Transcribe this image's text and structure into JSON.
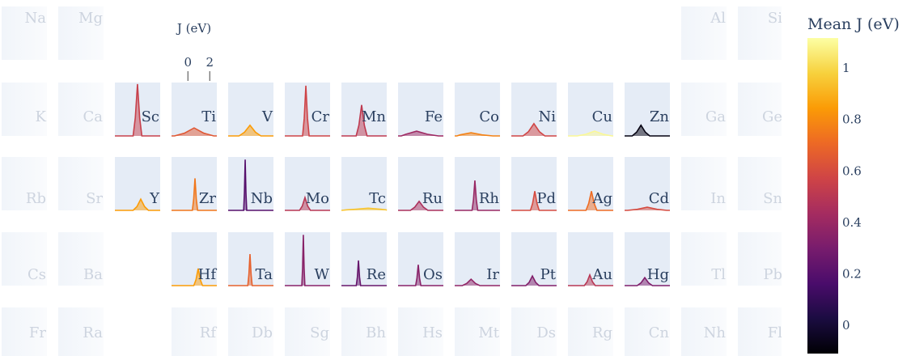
{
  "chart_data": {
    "type": "periodic-density",
    "xlabel": "J (eV)",
    "xlim": [
      -1.5,
      2.65
    ],
    "xticks": [
      0,
      2
    ],
    "ylim": [
      0,
      1
    ],
    "colorbar": {
      "title": "Mean J (eV)",
      "lim": [
        -0.107,
        1.12
      ],
      "ticks": [
        0,
        0.2,
        0.4,
        0.6,
        0.8,
        1
      ]
    },
    "colorscale": [
      "#000004",
      "#1b0c41",
      "#4a0c6b",
      "#781c6d",
      "#a52c60",
      "#cf4446",
      "#ed6925",
      "#fb9b06",
      "#f7d13d",
      "#fcffa4"
    ],
    "rows": [
      [
        {
          "symbol": "Na"
        },
        {
          "symbol": "Mg"
        },
        null,
        null,
        null,
        null,
        null,
        null,
        null,
        null,
        null,
        null,
        {
          "symbol": "Al"
        },
        {
          "symbol": "Si"
        }
      ],
      [
        {
          "symbol": "K"
        },
        {
          "symbol": "Ca"
        },
        {
          "symbol": "Sc",
          "mean_j": 0.55,
          "x": [
            -1.5,
            0.17,
            0.37,
            0.57,
            0.77,
            0.97,
            2.65
          ],
          "y": [
            0,
            0,
            0.34,
            0.97,
            0.34,
            0,
            0
          ]
        },
        {
          "symbol": "Ti",
          "mean_j": 0.65,
          "x": [
            -1.5,
            -1.23,
            -0.33,
            0.57,
            1.47,
            2.37,
            2.65
          ],
          "y": [
            0,
            0,
            0.05,
            0.15,
            0.05,
            0,
            0
          ]
        },
        {
          "symbol": "V",
          "mean_j": 0.85,
          "x": [
            -1.5,
            -0.5,
            0,
            0.5,
            1,
            1.5,
            2.65
          ],
          "y": [
            0,
            0,
            0.07,
            0.2,
            0.07,
            0,
            0
          ]
        },
        {
          "symbol": "Cr",
          "mean_j": 0.57,
          "x": [
            -1.5,
            0.13,
            0.28,
            0.43,
            0.58,
            0.73,
            2.65
          ],
          "y": [
            0,
            0,
            0.33,
            0.94,
            0.33,
            0,
            0
          ]
        },
        {
          "symbol": "Mn",
          "mean_j": 0.52,
          "x": [
            -1.5,
            -0.15,
            0.1,
            0.35,
            0.6,
            0.85,
            2.65
          ],
          "y": [
            0,
            0,
            0.2,
            0.58,
            0.2,
            0,
            0
          ]
        },
        {
          "symbol": "Fe",
          "mean_j": 0.42,
          "x": [
            -1.5,
            -1.2,
            -0.8,
            0.2,
            1.2,
            2.2,
            2.65
          ],
          "y": [
            0,
            0,
            0.03,
            0.09,
            0.03,
            0,
            0
          ]
        },
        {
          "symbol": "Co",
          "mean_j": 0.78,
          "x": [
            -1.5,
            -1.3,
            -1,
            0,
            1,
            2,
            2.65
          ],
          "y": [
            0,
            0,
            0.02,
            0.06,
            0.02,
            0,
            0
          ]
        },
        {
          "symbol": "Ni",
          "mean_j": 0.58,
          "x": [
            -1.5,
            -0.43,
            0.07,
            0.57,
            1.07,
            1.57,
            2.65
          ],
          "y": [
            0,
            0,
            0.08,
            0.23,
            0.08,
            0,
            0
          ]
        },
        {
          "symbol": "Cu",
          "mean_j": 1.1,
          "x": [
            -1.5,
            -0.66,
            0.14,
            0.94,
            1.74,
            2.54,
            2.65
          ],
          "y": [
            0,
            0,
            0.03,
            0.09,
            0.03,
            0,
            0
          ]
        },
        {
          "symbol": "Zn",
          "mean_j": -0.08,
          "x": [
            -1.5,
            -0.8,
            -0.4,
            0,
            0.4,
            0.8,
            2.65
          ],
          "y": [
            0,
            0,
            0.07,
            0.2,
            0.07,
            0,
            0
          ]
        },
        {
          "symbol": "Ga"
        },
        {
          "symbol": "Ge"
        }
      ],
      [
        {
          "symbol": "Rb"
        },
        {
          "symbol": "Sr"
        },
        {
          "symbol": "Y",
          "mean_j": 0.85,
          "x": [
            -1.5,
            0.17,
            0.52,
            0.87,
            1.22,
            1.57,
            2.65
          ],
          "y": [
            0,
            0,
            0.07,
            0.21,
            0.07,
            0,
            0
          ]
        },
        {
          "symbol": "Zr",
          "mean_j": 0.75,
          "x": [
            -1.5,
            0.41,
            0.53,
            0.65,
            0.77,
            0.89,
            2.65
          ],
          "y": [
            0,
            0,
            0.21,
            0.6,
            0.21,
            0,
            0
          ]
        },
        {
          "symbol": "Nb",
          "mean_j": 0.2,
          "x": [
            -1.5,
            -0.08,
            -0.01,
            0.06,
            0.13,
            0.2,
            2.65
          ],
          "y": [
            0,
            0,
            0.33,
            0.95,
            0.33,
            0,
            0
          ]
        },
        {
          "symbol": "Mo",
          "mean_j": 0.5,
          "x": [
            -1.5,
            -0.15,
            0.1,
            0.35,
            0.6,
            0.85,
            2.65
          ],
          "y": [
            0,
            0,
            0.08,
            0.24,
            0.08,
            0,
            0
          ]
        },
        {
          "symbol": "Tc",
          "mean_j": 0.95,
          "x": [
            -1.5,
            -1,
            -0.25,
            0.95,
            2.15,
            2.6,
            2.65
          ],
          "y": [
            0,
            0.01,
            0.02,
            0.04,
            0.02,
            0.01,
            0
          ]
        },
        {
          "symbol": "Ru",
          "mean_j": 0.46,
          "x": [
            -1.5,
            -0.37,
            0.03,
            0.43,
            0.83,
            1.23,
            2.65
          ],
          "y": [
            0,
            0,
            0.06,
            0.17,
            0.06,
            0,
            0
          ]
        },
        {
          "symbol": "Rh",
          "mean_j": 0.4,
          "x": [
            -1.5,
            0.09,
            0.22,
            0.35,
            0.48,
            0.61,
            2.65
          ],
          "y": [
            0,
            0,
            0.2,
            0.56,
            0.2,
            0,
            0
          ]
        },
        {
          "symbol": "Pd",
          "mean_j": 0.6,
          "x": [
            -1.5,
            0.25,
            0.45,
            0.65,
            0.85,
            1.05,
            2.65
          ],
          "y": [
            0,
            0,
            0.13,
            0.36,
            0.13,
            0,
            0
          ]
        },
        {
          "symbol": "Ag",
          "mean_j": 0.72,
          "x": [
            -1.5,
            0.15,
            0.4,
            0.65,
            0.9,
            1.15,
            2.65
          ],
          "y": [
            0,
            0,
            0.13,
            0.36,
            0.13,
            0,
            0
          ]
        },
        {
          "symbol": "Cd",
          "mean_j": 0.6,
          "x": [
            -1.5,
            -1.23,
            -0.33,
            0.57,
            1.47,
            2.37,
            2.65
          ],
          "y": [
            0,
            0,
            0.02,
            0.06,
            0.02,
            0,
            0
          ]
        },
        {
          "symbol": "In"
        },
        {
          "symbol": "Sn"
        }
      ],
      [
        {
          "symbol": "Cs"
        },
        {
          "symbol": "Ba"
        },
        null,
        {
          "symbol": "Hf",
          "mean_j": 0.85,
          "x": [
            -1.5,
            0.54,
            0.74,
            0.94,
            1.14,
            1.34,
            2.65
          ],
          "y": [
            0,
            0,
            0.11,
            0.32,
            0.11,
            0,
            0
          ]
        },
        {
          "symbol": "Ta",
          "mean_j": 0.68,
          "x": [
            -1.5,
            0.3,
            0.4,
            0.5,
            0.6,
            0.7,
            2.65
          ],
          "y": [
            0,
            0,
            0.21,
            0.59,
            0.21,
            0,
            0
          ]
        },
        {
          "symbol": "W",
          "mean_j": 0.35,
          "x": [
            -1.5,
            0.06,
            0.13,
            0.2,
            0.27,
            0.34,
            2.65
          ],
          "y": [
            0,
            0,
            0.33,
            0.95,
            0.33,
            0,
            0
          ]
        },
        {
          "symbol": "Re",
          "mean_j": 0.25,
          "x": [
            -1.5,
            -0.14,
            -0.04,
            0.06,
            0.16,
            0.26,
            2.65
          ],
          "y": [
            0,
            0,
            0.16,
            0.47,
            0.16,
            0,
            0
          ]
        },
        {
          "symbol": "Os",
          "mean_j": 0.35,
          "x": [
            -1.5,
            0.11,
            0.23,
            0.35,
            0.47,
            0.59,
            2.65
          ],
          "y": [
            0,
            0,
            0.14,
            0.39,
            0.14,
            0,
            0
          ]
        },
        {
          "symbol": "Ir",
          "mean_j": 0.38,
          "x": [
            -1.5,
            -0.8,
            -0.4,
            0,
            0.4,
            0.8,
            2.65
          ],
          "y": [
            0,
            0,
            0.04,
            0.12,
            0.04,
            0,
            0
          ]
        },
        {
          "symbol": "Pt",
          "mean_j": 0.33,
          "x": [
            -1.5,
            -0.17,
            0.13,
            0.43,
            0.73,
            1.03,
            2.65
          ],
          "y": [
            0,
            0,
            0.06,
            0.18,
            0.06,
            0,
            0
          ]
        },
        {
          "symbol": "Au",
          "mean_j": 0.5,
          "x": [
            -1.5,
            0,
            0.25,
            0.5,
            0.75,
            1,
            2.65
          ],
          "y": [
            0,
            0,
            0.07,
            0.2,
            0.07,
            0,
            0
          ]
        },
        {
          "symbol": "Hg",
          "mean_j": 0.32,
          "x": [
            -1.5,
            -0.35,
            0,
            0.35,
            0.7,
            1.05,
            2.65
          ],
          "y": [
            0,
            0,
            0.05,
            0.15,
            0.05,
            0,
            0
          ]
        },
        {
          "symbol": "Tl"
        },
        {
          "symbol": "Pb"
        }
      ],
      [
        {
          "symbol": "Fr"
        },
        {
          "symbol": "Ra"
        },
        null,
        {
          "symbol": "Rf"
        },
        {
          "symbol": "Db"
        },
        {
          "symbol": "Sg"
        },
        {
          "symbol": "Bh"
        },
        {
          "symbol": "Hs"
        },
        {
          "symbol": "Mt"
        },
        {
          "symbol": "Ds"
        },
        {
          "symbol": "Rg"
        },
        {
          "symbol": "Cn"
        },
        {
          "symbol": "Nh"
        },
        {
          "symbol": "Fl"
        }
      ]
    ]
  }
}
